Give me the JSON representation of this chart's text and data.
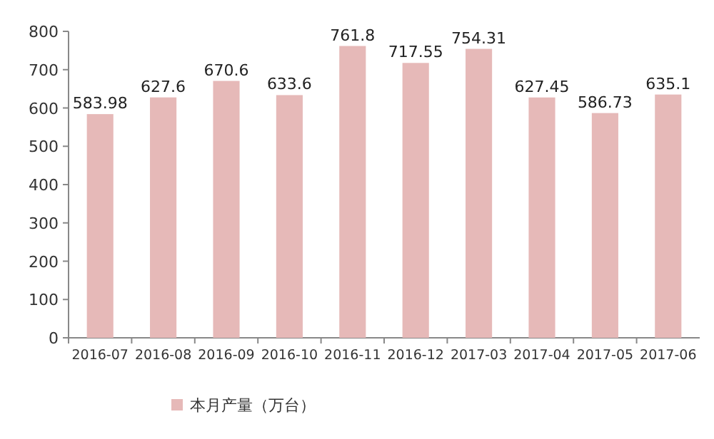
{
  "chart_data": {
    "type": "bar",
    "categories": [
      "2016-07",
      "2016-08",
      "2016-09",
      "2016-10",
      "2016-11",
      "2016-12",
      "2017-03",
      "2017-04",
      "2017-05",
      "2017-06"
    ],
    "series": [
      {
        "name": "本月产量（万台）",
        "color": "#e6b9b8",
        "values": [
          583.98,
          627.6,
          670.6,
          633.6,
          761.8,
          717.55,
          754.31,
          627.45,
          586.73,
          635.1
        ]
      }
    ],
    "ylim": [
      0,
      800
    ],
    "yticks": [
      0,
      100,
      200,
      300,
      400,
      500,
      600,
      700,
      800
    ],
    "data_labels": true,
    "legend": "bottom",
    "grid": false
  }
}
